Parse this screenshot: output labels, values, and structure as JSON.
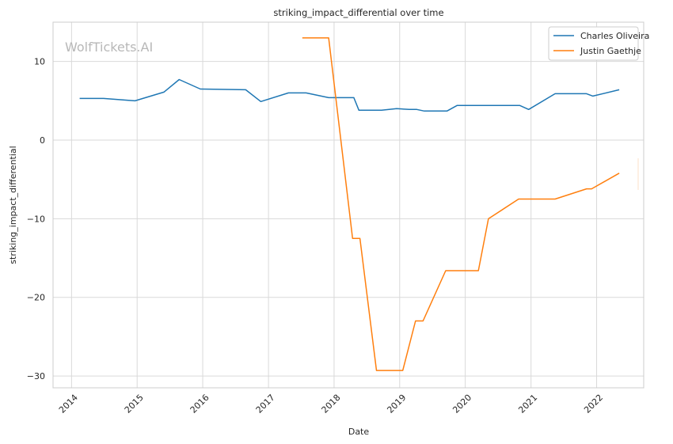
{
  "chart_data": {
    "type": "line",
    "title": "striking_impact_differential over time",
    "xlabel": "Date",
    "ylabel": "striking_impact_differential",
    "watermark": "WolfTickets.AI",
    "xlim": [
      "2013-09-20",
      "2022-09-20"
    ],
    "ylim": [
      -31.5,
      15
    ],
    "x_ticks": [
      "2014-01-01",
      "2015-01-01",
      "2016-01-01",
      "2017-01-01",
      "2018-01-01",
      "2019-01-01",
      "2020-01-01",
      "2021-01-01",
      "2022-01-01"
    ],
    "x_tick_labels": [
      "2014",
      "2015",
      "2016",
      "2017",
      "2018",
      "2019",
      "2020",
      "2021",
      "2022"
    ],
    "y_ticks": [
      10,
      0,
      -10,
      -20,
      -30
    ],
    "y_tick_labels": [
      "10",
      "0",
      "−10",
      "−20",
      "−30"
    ],
    "grid": true,
    "legend": "top-right",
    "series": [
      {
        "name": "Charles Oliveira",
        "color": "#1f77b4",
        "points": [
          [
            "2014-02-15",
            5.3
          ],
          [
            "2014-06-28",
            5.3
          ],
          [
            "2014-12-20",
            5.0
          ],
          [
            "2015-05-30",
            6.1
          ],
          [
            "2015-08-23",
            7.7
          ],
          [
            "2015-12-19",
            6.5
          ],
          [
            "2016-08-27",
            6.4
          ],
          [
            "2016-11-19",
            4.9
          ],
          [
            "2017-04-22",
            6.0
          ],
          [
            "2017-07-29",
            6.0
          ],
          [
            "2017-12-02",
            5.4
          ],
          [
            "2018-03-10",
            5.4
          ],
          [
            "2018-04-21",
            5.4
          ],
          [
            "2018-05-19",
            3.8
          ],
          [
            "2018-09-22",
            3.8
          ],
          [
            "2018-12-15",
            4.0
          ],
          [
            "2019-02-23",
            3.9
          ],
          [
            "2019-04-06",
            3.9
          ],
          [
            "2019-05-18",
            3.7
          ],
          [
            "2019-09-21",
            3.7
          ],
          [
            "2019-11-16",
            4.4
          ],
          [
            "2020-03-14",
            4.4
          ],
          [
            "2020-10-31",
            4.4
          ],
          [
            "2020-12-19",
            3.9
          ],
          [
            "2021-05-15",
            5.9
          ],
          [
            "2021-11-06",
            5.9
          ],
          [
            "2021-12-11",
            5.6
          ],
          [
            "2022-05-07",
            6.4
          ]
        ]
      },
      {
        "name": "Justin Gaethje",
        "color": "#ff7f0e",
        "points": [
          [
            "2017-07-08",
            13.0
          ],
          [
            "2017-12-02",
            13.0
          ],
          [
            "2018-04-14",
            -12.5
          ],
          [
            "2018-05-25",
            -12.5
          ],
          [
            "2018-08-25",
            -29.3
          ],
          [
            "2019-01-18",
            -29.3
          ],
          [
            "2019-03-30",
            -23.0
          ],
          [
            "2019-05-11",
            -23.0
          ],
          [
            "2019-09-14",
            -16.6
          ],
          [
            "2020-03-14",
            -16.6
          ],
          [
            "2020-05-09",
            -10.0
          ],
          [
            "2020-10-24",
            -7.5
          ],
          [
            "2021-05-15",
            -7.5
          ],
          [
            "2021-11-06",
            -6.2
          ],
          [
            "2021-12-04",
            -6.2
          ],
          [
            "2022-05-07",
            -4.2
          ]
        ]
      }
    ]
  }
}
